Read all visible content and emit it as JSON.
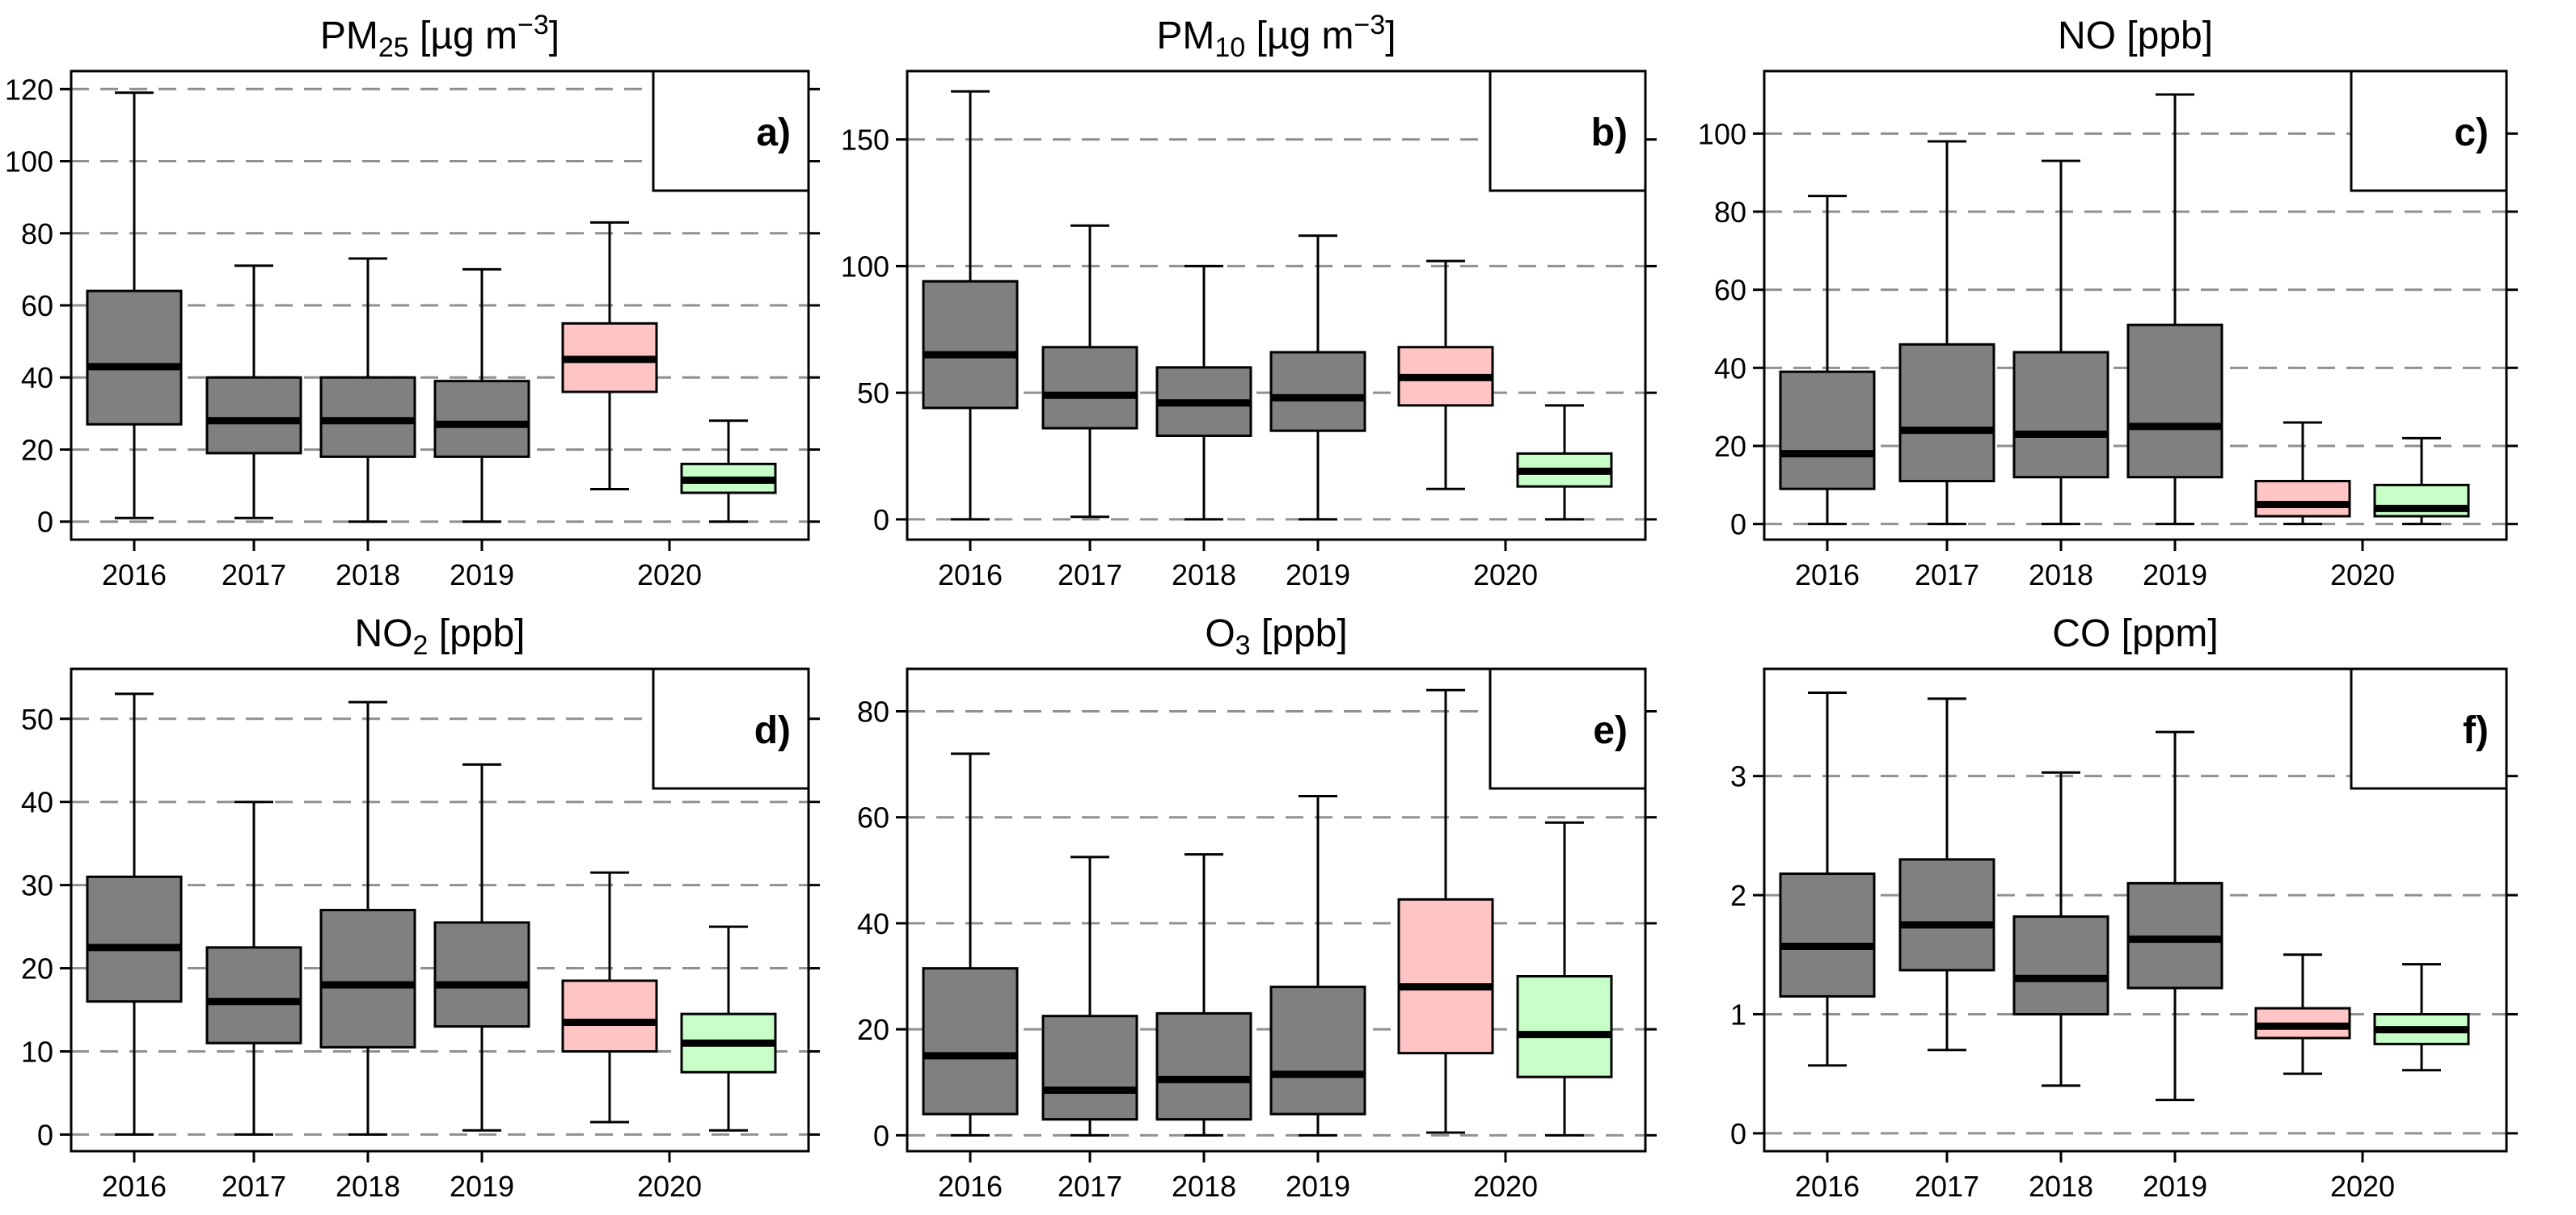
{
  "figure": {
    "background": "#ffffff"
  },
  "colors": {
    "box_fill": "#808080",
    "box_fill_pre": "#ffc4c4",
    "box_fill_post": "#c8ffc8",
    "grid": "#909090",
    "stroke": "#000000"
  },
  "chart_data": [
    {
      "id": "pm25",
      "type": "box",
      "title": "PM25 [µg m−3]",
      "title_parts": {
        "main": "PM",
        "sub": "25",
        "units": " [",
        "mu": "µ",
        "unit_rest": "g m",
        "sup": "−3",
        "close": "]"
      },
      "letter": "a)",
      "categories": [
        "2016",
        "2017",
        "2018",
        "2019",
        "2020"
      ],
      "ylim": [
        -5,
        125
      ],
      "yticks": [
        0,
        20,
        40,
        60,
        80,
        100,
        120
      ],
      "grid": "horizontal dashed",
      "boxes": [
        {
          "label": "2016",
          "group": "year",
          "min": 1,
          "q1": 27,
          "median": 43,
          "q3": 64,
          "max": 119
        },
        {
          "label": "2017",
          "group": "year",
          "min": 1,
          "q1": 19,
          "median": 28,
          "q3": 40,
          "max": 71
        },
        {
          "label": "2018",
          "group": "year",
          "min": 0,
          "q1": 18,
          "median": 28,
          "q3": 40,
          "max": 73
        },
        {
          "label": "2019",
          "group": "year",
          "min": 0,
          "q1": 18,
          "median": 27,
          "q3": 39,
          "max": 70
        },
        {
          "label": "2020",
          "group": "pre",
          "min": 9,
          "q1": 36,
          "median": 45,
          "q3": 55,
          "max": 83
        },
        {
          "label": "2020",
          "group": "post",
          "min": 0,
          "q1": 8,
          "median": 11.5,
          "q3": 16,
          "max": 28
        }
      ]
    },
    {
      "id": "pm10",
      "type": "box",
      "title": "PM10 [µg m−3]",
      "title_parts": {
        "main": "PM",
        "sub": "10",
        "units": " [",
        "mu": "µ",
        "unit_rest": "g m",
        "sup": "−3",
        "close": "]"
      },
      "letter": "b)",
      "categories": [
        "2016",
        "2017",
        "2018",
        "2019",
        "2020"
      ],
      "ylim": [
        -8,
        177
      ],
      "yticks": [
        0,
        50,
        100,
        150
      ],
      "grid": "horizontal dashed",
      "boxes": [
        {
          "label": "2016",
          "group": "year",
          "min": 0,
          "q1": 44,
          "median": 65,
          "q3": 94,
          "max": 169
        },
        {
          "label": "2017",
          "group": "year",
          "min": 1,
          "q1": 36,
          "median": 49,
          "q3": 68,
          "max": 116
        },
        {
          "label": "2018",
          "group": "year",
          "min": 0,
          "q1": 33,
          "median": 46,
          "q3": 60,
          "max": 100
        },
        {
          "label": "2019",
          "group": "year",
          "min": 0,
          "q1": 35,
          "median": 48,
          "q3": 66,
          "max": 112
        },
        {
          "label": "2020",
          "group": "pre",
          "min": 12,
          "q1": 45,
          "median": 56,
          "q3": 68,
          "max": 102
        },
        {
          "label": "2020",
          "group": "post",
          "min": 0,
          "q1": 13,
          "median": 19,
          "q3": 26,
          "max": 45
        }
      ]
    },
    {
      "id": "no",
      "type": "box",
      "title": "NO [ppb]",
      "title_parts": {
        "main": "NO [ppb]"
      },
      "letter": "c)",
      "categories": [
        "2016",
        "2017",
        "2018",
        "2019",
        "2020"
      ],
      "ylim": [
        -4,
        116
      ],
      "yticks": [
        0,
        20,
        40,
        60,
        80,
        100
      ],
      "grid": "horizontal dashed",
      "boxes": [
        {
          "label": "2016",
          "group": "year",
          "min": 0,
          "q1": 9,
          "median": 18,
          "q3": 39,
          "max": 84
        },
        {
          "label": "2017",
          "group": "year",
          "min": 0,
          "q1": 11,
          "median": 24,
          "q3": 46,
          "max": 98
        },
        {
          "label": "2018",
          "group": "year",
          "min": 0,
          "q1": 12,
          "median": 23,
          "q3": 44,
          "max": 93
        },
        {
          "label": "2019",
          "group": "year",
          "min": 0,
          "q1": 12,
          "median": 25,
          "q3": 51,
          "max": 110
        },
        {
          "label": "2020",
          "group": "pre",
          "min": 0,
          "q1": 2,
          "median": 5,
          "q3": 11,
          "max": 26
        },
        {
          "label": "2020",
          "group": "post",
          "min": 0,
          "q1": 2,
          "median": 4,
          "q3": 10,
          "max": 22
        }
      ]
    },
    {
      "id": "no2",
      "type": "box",
      "title": "NO2 [ppb]",
      "title_parts": {
        "main": "NO",
        "sub": "2",
        "units": " [ppb]"
      },
      "letter": "d)",
      "categories": [
        "2016",
        "2017",
        "2018",
        "2019",
        "2020"
      ],
      "ylim": [
        -2,
        56
      ],
      "yticks": [
        0,
        10,
        20,
        30,
        40,
        50
      ],
      "grid": "horizontal dashed",
      "boxes": [
        {
          "label": "2016",
          "group": "year",
          "min": 0,
          "q1": 16,
          "median": 22.5,
          "q3": 31,
          "max": 53
        },
        {
          "label": "2017",
          "group": "year",
          "min": 0,
          "q1": 11,
          "median": 16,
          "q3": 22.5,
          "max": 40
        },
        {
          "label": "2018",
          "group": "year",
          "min": 0,
          "q1": 10.5,
          "median": 18,
          "q3": 27,
          "max": 52
        },
        {
          "label": "2019",
          "group": "year",
          "min": 0.5,
          "q1": 13,
          "median": 18,
          "q3": 25.5,
          "max": 44.5
        },
        {
          "label": "2020",
          "group": "pre",
          "min": 1.5,
          "q1": 10,
          "median": 13.5,
          "q3": 18.5,
          "max": 31.5
        },
        {
          "label": "2020",
          "group": "post",
          "min": 0.5,
          "q1": 7.5,
          "median": 11,
          "q3": 14.5,
          "max": 25
        }
      ]
    },
    {
      "id": "o3",
      "type": "box",
      "title": "O3 [ppb]",
      "title_parts": {
        "main": "O",
        "sub": "3",
        "units": " [ppb]"
      },
      "letter": "e)",
      "categories": [
        "2016",
        "2017",
        "2018",
        "2019",
        "2020"
      ],
      "ylim": [
        -3,
        88
      ],
      "yticks": [
        0,
        20,
        40,
        60,
        80
      ],
      "grid": "horizontal dashed",
      "boxes": [
        {
          "label": "2016",
          "group": "year",
          "min": 0,
          "q1": 4,
          "median": 15,
          "q3": 31.5,
          "max": 72
        },
        {
          "label": "2017",
          "group": "year",
          "min": 0,
          "q1": 3,
          "median": 8.5,
          "q3": 22.5,
          "max": 52.5
        },
        {
          "label": "2018",
          "group": "year",
          "min": 0,
          "q1": 3,
          "median": 10.5,
          "q3": 23,
          "max": 53
        },
        {
          "label": "2019",
          "group": "year",
          "min": 0,
          "q1": 4,
          "median": 11.5,
          "q3": 28,
          "max": 64
        },
        {
          "label": "2020",
          "group": "pre",
          "min": 0.5,
          "q1": 15.5,
          "median": 28,
          "q3": 44.5,
          "max": 84
        },
        {
          "label": "2020",
          "group": "post",
          "min": 0,
          "q1": 11,
          "median": 19,
          "q3": 30,
          "max": 59
        }
      ]
    },
    {
      "id": "co",
      "type": "box",
      "title": "CO [ppm]",
      "title_parts": {
        "main": "CO [ppm]"
      },
      "letter": "f)",
      "categories": [
        "2016",
        "2017",
        "2018",
        "2019",
        "2020"
      ],
      "ylim": [
        -0.15,
        3.9
      ],
      "yticks": [
        0,
        1,
        2,
        3
      ],
      "grid": "horizontal dashed",
      "boxes": [
        {
          "label": "2016",
          "group": "year",
          "min": 0.57,
          "q1": 1.15,
          "median": 1.57,
          "q3": 2.18,
          "max": 3.7
        },
        {
          "label": "2017",
          "group": "year",
          "min": 0.7,
          "q1": 1.37,
          "median": 1.75,
          "q3": 2.3,
          "max": 3.65
        },
        {
          "label": "2018",
          "group": "year",
          "min": 0.4,
          "q1": 1.0,
          "median": 1.3,
          "q3": 1.82,
          "max": 3.03
        },
        {
          "label": "2019",
          "group": "year",
          "min": 0.28,
          "q1": 1.22,
          "median": 1.63,
          "q3": 2.1,
          "max": 3.37
        },
        {
          "label": "2020",
          "group": "pre",
          "min": 0.5,
          "q1": 0.8,
          "median": 0.9,
          "q3": 1.05,
          "max": 1.5
        },
        {
          "label": "2020",
          "group": "post",
          "min": 0.53,
          "q1": 0.75,
          "median": 0.87,
          "q3": 1.0,
          "max": 1.42
        }
      ]
    }
  ]
}
